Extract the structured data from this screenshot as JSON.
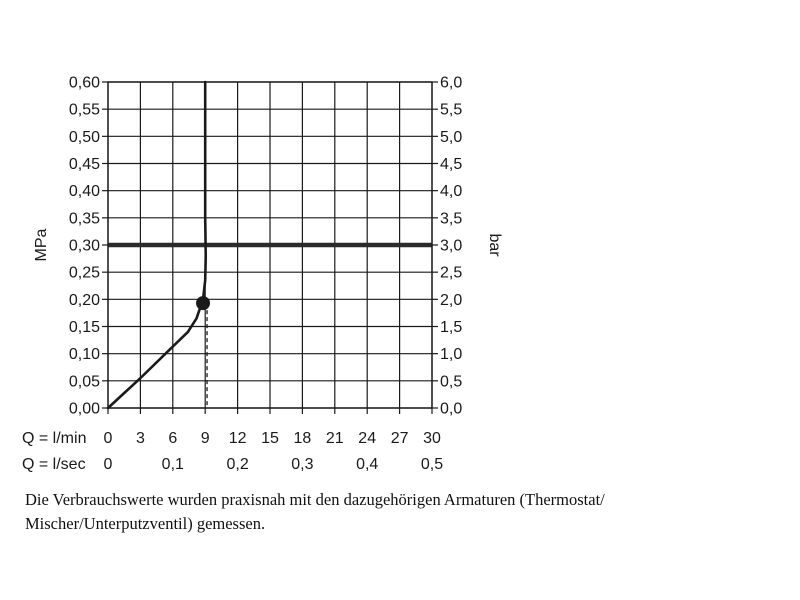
{
  "chart_data": {
    "type": "line",
    "title": "",
    "ylabel_left": "MPa",
    "ylabel_right": "bar",
    "y_left_ticks": [
      "0,00",
      "0,05",
      "0,10",
      "0,15",
      "0,20",
      "0,25",
      "0,30",
      "0,35",
      "0,40",
      "0,45",
      "0,50",
      "0,55",
      "0,60"
    ],
    "y_right_ticks": [
      "0,0",
      "0,5",
      "1,0",
      "1,5",
      "2,0",
      "2,5",
      "3,0",
      "3,5",
      "4,0",
      "4,5",
      "5,0",
      "5,5",
      "6,0"
    ],
    "ylim": [
      0,
      0.6
    ],
    "xlim": [
      0,
      30
    ],
    "x_rows": [
      {
        "label": "Q = l/min",
        "ticks": [
          {
            "x": 0,
            "text": "0"
          },
          {
            "x": 3,
            "text": "3"
          },
          {
            "x": 6,
            "text": "6"
          },
          {
            "x": 9,
            "text": "9"
          },
          {
            "x": 12,
            "text": "12"
          },
          {
            "x": 15,
            "text": "15"
          },
          {
            "x": 18,
            "text": "18"
          },
          {
            "x": 21,
            "text": "21"
          },
          {
            "x": 24,
            "text": "24"
          },
          {
            "x": 27,
            "text": "27"
          },
          {
            "x": 30,
            "text": "30"
          }
        ]
      },
      {
        "label": "Q = l/sec",
        "ticks": [
          {
            "x": 0,
            "text": "0"
          },
          {
            "x": 6,
            "text": "0,1"
          },
          {
            "x": 12,
            "text": "0,2"
          },
          {
            "x": 18,
            "text": "0,3"
          },
          {
            "x": 24,
            "text": "0,4"
          },
          {
            "x": 30,
            "text": "0,5"
          }
        ]
      }
    ],
    "grid": true,
    "series": [
      {
        "points": [
          {
            "x": 0,
            "y": 0.0
          },
          {
            "x": 3,
            "y": 0.055
          },
          {
            "x": 6,
            "y": 0.113
          },
          {
            "x": 7.4,
            "y": 0.14
          },
          {
            "x": 8.2,
            "y": 0.165
          },
          {
            "x": 8.8,
            "y": 0.2
          },
          {
            "x": 9.0,
            "y": 0.235
          },
          {
            "x": 9.05,
            "y": 0.28
          },
          {
            "x": 9.0,
            "y": 0.35
          },
          {
            "x": 9.0,
            "y": 0.6
          }
        ]
      }
    ],
    "reference_line_y": 0.3,
    "marker": {
      "x": 8.8,
      "y": 0.193
    },
    "colors": {
      "line": "#1a1a1a",
      "grid": "#1a1a1a",
      "reference": "#2b2b2b"
    }
  },
  "caption": {
    "line1": "Die Verbrauchswerte wurden praxisnah mit den dazugehörigen Armaturen (Thermostat/",
    "line2": "Mischer/Unterputzventil) gemessen."
  }
}
